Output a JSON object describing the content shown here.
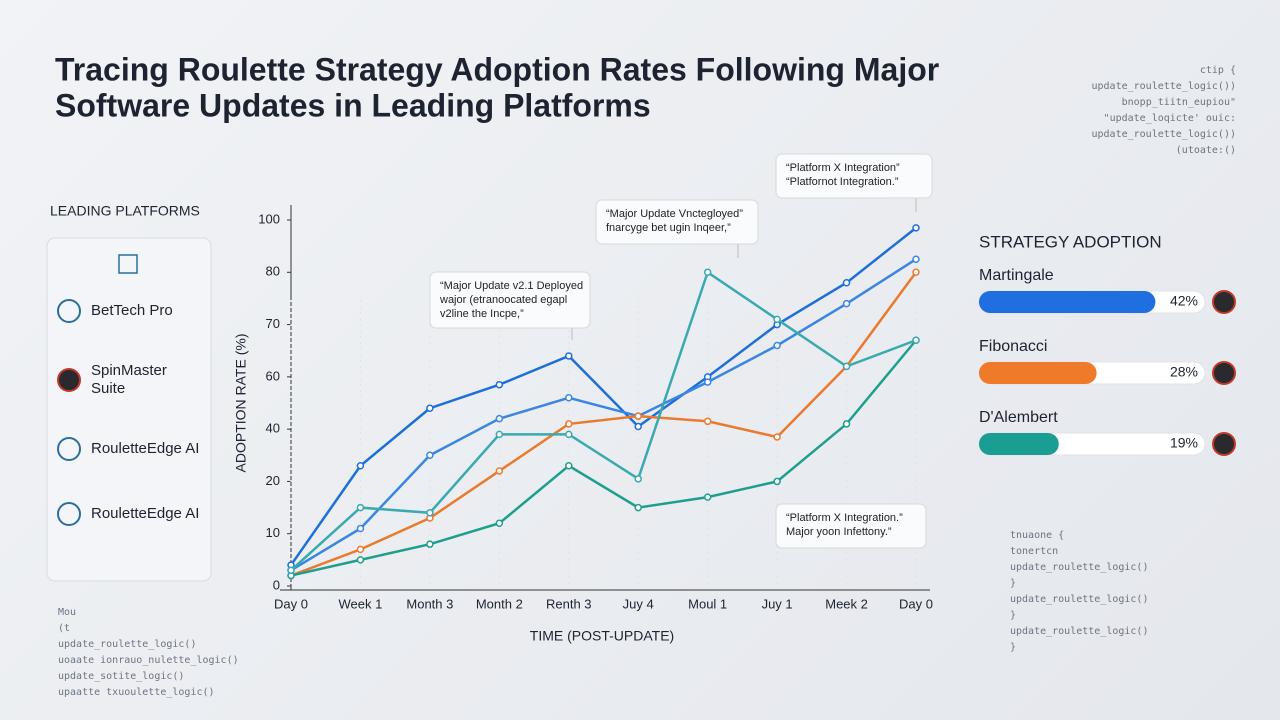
{
  "chart_data": {
    "type": "line",
    "title": [
      "Tracing Roulette Strategy Adoption Rates Following Major",
      "Software Updates in Leading Platforms"
    ],
    "x_label": "TIME (POST-UPDATE)",
    "y_label": "ADOPTION RATE (%)",
    "categories": [
      "Day 0",
      "Week 1",
      "Month 3",
      "Month 2",
      "Renth 3",
      "Juy 4",
      "Moul 1",
      "Juy 1",
      "Meek 2",
      "Day 0"
    ],
    "yticks": [
      0,
      10,
      20,
      40,
      60,
      70,
      80,
      100
    ],
    "series": [
      {
        "color": "#1e6fd9",
        "values": [
          4,
          26,
          48,
          57,
          64,
          41,
          60,
          70,
          78,
          97
        ]
      },
      {
        "color": "#3a86e2",
        "values": [
          3,
          11,
          30,
          44,
          52,
          45,
          58,
          66,
          74,
          85
        ]
      },
      {
        "color": "#ea7a2e",
        "values": [
          2,
          7,
          13,
          24,
          42,
          45,
          43,
          37,
          62,
          80
        ]
      },
      {
        "color": "#1e9f8e",
        "values": [
          2,
          5,
          8,
          12,
          26,
          15,
          17,
          20,
          42,
          67
        ]
      },
      {
        "color": "#3aa9b0",
        "values": [
          3,
          15,
          14,
          38,
          38,
          21,
          80,
          71,
          62,
          67
        ]
      }
    ],
    "annotations": [
      {
        "lines": [
          "“Major Update v2.1 Deployed",
          "wajor (etranoocated egapl",
          "v2line the Incpe,”"
        ]
      },
      {
        "lines": [
          "“Major Update Vnctegloyed”",
          "fnarcyge bet ugin Inqeer,”"
        ]
      },
      {
        "lines": [
          "“Platform X Integration”",
          "“Platfornot Integration.”"
        ]
      },
      {
        "lines": [
          "“Platform X Integration.”",
          "Major yoon Infettony.”"
        ]
      }
    ]
  },
  "platforms": {
    "title": "LEADING PLATFORMS",
    "items": [
      [
        "BetTech Pro"
      ],
      [
        "SpinMaster",
        "Suite"
      ],
      [
        "RouletteEdge AI"
      ],
      [
        "RouletteEdge AI"
      ]
    ]
  },
  "strategy": {
    "type": "bar",
    "title": "STRATEGY ADOPTION",
    "categories": [
      "Martingale",
      "Fibonacci",
      "D'Alembert"
    ],
    "values": [
      42,
      28,
      19
    ],
    "value_labels": [
      "42%",
      "28%",
      "19%"
    ],
    "colors": [
      "#1f6fe0",
      "#ef7a2a",
      "#1a9e94"
    ]
  },
  "code": {
    "top_right": [
      "ctip {",
      "update_roulette_logic())",
      "bnopp_tiitn_eupiou\"",
      "\"update_loqicte'        ouic:",
      "update_roulette_logic())",
      "(utoate:()"
    ],
    "bottom_left": [
      "Mou",
      "(t",
      "update_roulette_logic()",
      "uoaate  ionrauo_nulette_logic()",
      "update_sotite_logic()",
      "upaatte        txuoulette_logic()"
    ],
    "bottom_right": [
      "tnuaone {",
      "tonertcn",
      "update_roulette_logic()",
      "}",
      "update_roulette_logic()",
      "}",
      "update_roulette_logic()",
      "}"
    ]
  }
}
